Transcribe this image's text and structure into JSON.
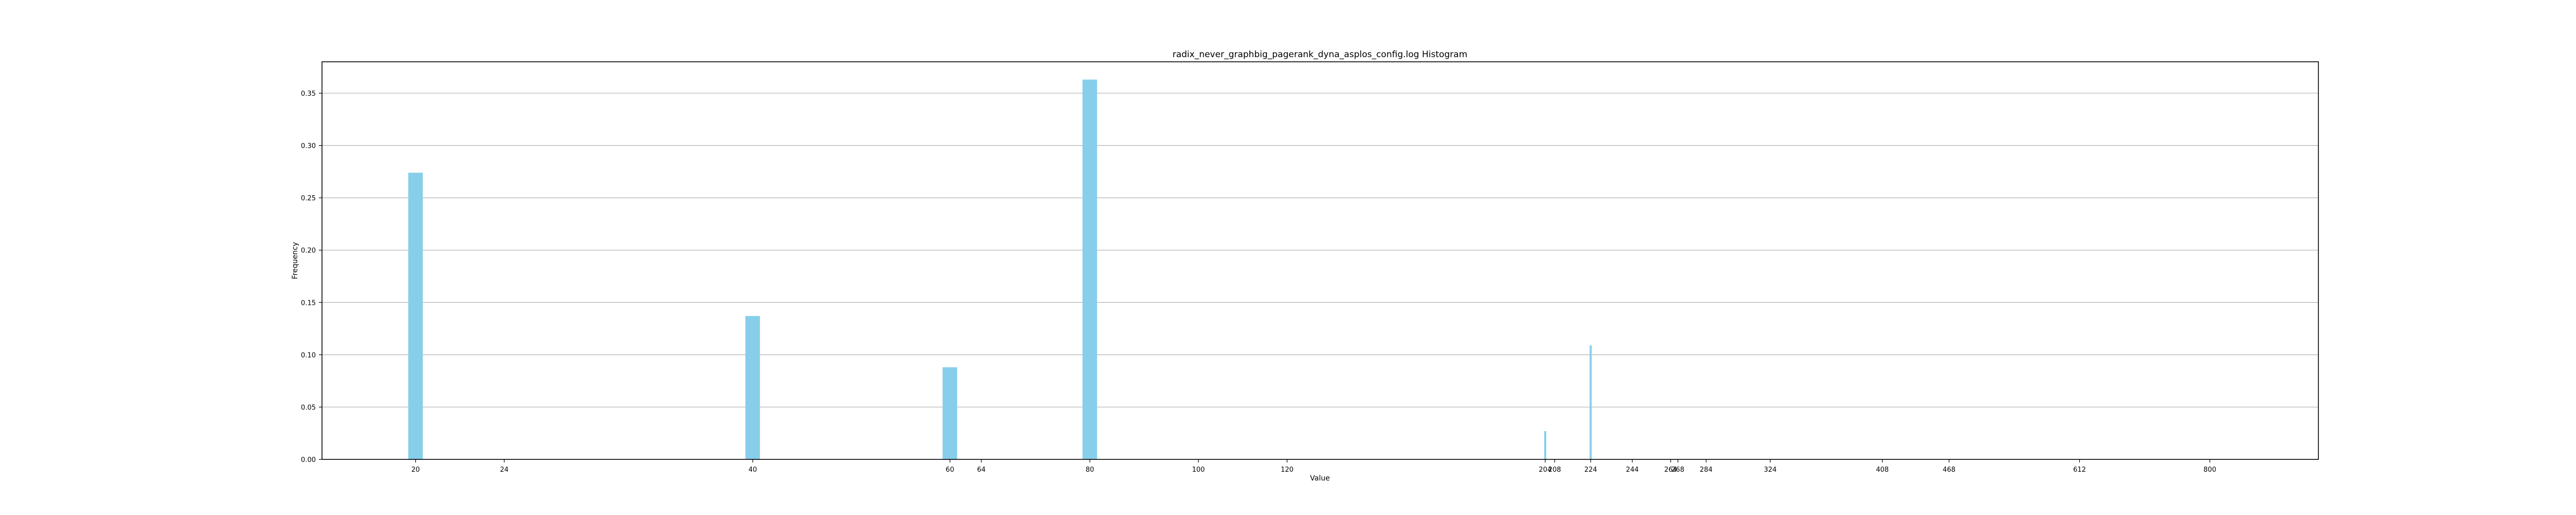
{
  "chart_data": {
    "type": "bar",
    "title": "radix_never_graphbig_pagerank_dyna_asplos_config.log Histogram",
    "xlabel": "Value",
    "ylabel": "Frequency",
    "x_scale": "log",
    "xlim": [
      16.5,
      1000
    ],
    "ylim": [
      0,
      0.38
    ],
    "grid": "y",
    "bar_color": "#87CEEB",
    "bars": [
      {
        "x": 20,
        "value": 0.274
      },
      {
        "x": 40,
        "value": 0.137
      },
      {
        "x": 60,
        "value": 0.088
      },
      {
        "x": 80,
        "value": 0.363
      },
      {
        "x": 204,
        "value": 0.027
      },
      {
        "x": 224,
        "value": 0.109
      }
    ],
    "x_ticks": [
      "20",
      "24",
      "40",
      "60",
      "64",
      "80",
      "100",
      "120",
      "204",
      "208",
      "224",
      "244",
      "264",
      "268",
      "284",
      "324",
      "408",
      "468",
      "612",
      "800"
    ],
    "y_ticks": [
      "0.00",
      "0.05",
      "0.10",
      "0.15",
      "0.20",
      "0.25",
      "0.30",
      "0.35"
    ]
  }
}
